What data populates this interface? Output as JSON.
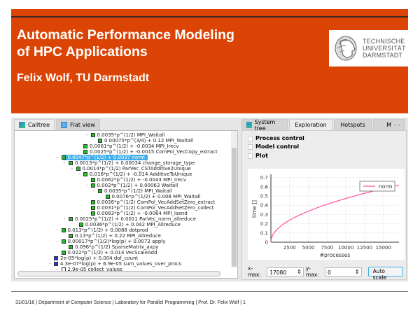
{
  "slide": {
    "title_line1": "Automatic Performance Modeling",
    "title_line2": "of HPC Applications",
    "author": "Felix Wolf, TU Darmstadt",
    "logo_text": [
      "TECHNISCHE",
      "UNIVERSITÄT",
      "DARMSTADT"
    ],
    "accent": "#dc4405"
  },
  "footer": "31/01/16  |  Department of Computer Science | Laboratory for Parallel Programming  |  Prof. Dr. Felix Wolf  |  1",
  "left_tabs": [
    {
      "label": "Calltree"
    },
    {
      "label": "Flat view"
    }
  ],
  "right_tabs": [
    {
      "label": "System tree"
    },
    {
      "label": "Exploration"
    },
    {
      "label": "Hotspots"
    },
    {
      "label": "M"
    }
  ],
  "tree": [
    {
      "text": "0.0035*p^(1/2) MPI_Waitall",
      "level": 5,
      "exp": true,
      "color": "#22c022"
    },
    {
      "text": "0.00075*p^(3/4) + 0.12 MPI_Waitall",
      "level": 6,
      "exp": false,
      "color": "#22c022"
    },
    {
      "text": "0.0061*p^(1/2) + -0.0034 MPI_Irecv",
      "level": 4,
      "exp": false,
      "color": "#22c022"
    },
    {
      "text": "0.0025*p^(1/2) + -0.0015 ComPol_VecCopy_extract",
      "level": 4,
      "exp": false,
      "color": "#22c022"
    },
    {
      "text": "0.0047*p^(1/2) + 0.0037 norm",
      "level": 1,
      "exp": true,
      "color": "#22c022",
      "selected": true
    },
    {
      "text": "0.0013*p^(1/2) + 0.00034 change_storage_type",
      "level": 2,
      "exp": true,
      "color": "#22c022"
    },
    {
      "text": "0.0014*p^(1/2) ParVec_CSTAdditive2Unique",
      "level": 3,
      "exp": true,
      "color": "#22c022"
    },
    {
      "text": "0.016*p^(1/2) + -0.014 AdditiveToUnique",
      "level": 4,
      "exp": true,
      "color": "#22c022"
    },
    {
      "text": "0.0062*p^(1/2) + -0.0043 MPI_Irecv",
      "level": 5,
      "exp": false,
      "color": "#22c022"
    },
    {
      "text": "0.002*p^(1/2) + 0.00063 Waitall",
      "level": 5,
      "exp": true,
      "color": "#22c022"
    },
    {
      "text": "0.0035*p^(1/2) MPI_Waitall",
      "level": 6,
      "exp": true,
      "color": "#22c022"
    },
    {
      "text": "0.0076*p^(1/2) + 0.008 MPI_Waitall",
      "level": 7,
      "exp": false,
      "color": "#22c022"
    },
    {
      "text": "0.0026*p^(1/2) ComPol_VecAddSetZero_extract",
      "level": 5,
      "exp": false,
      "color": "#22c022"
    },
    {
      "text": "0.0031*p^(1/2) ComPol_VecAddSetZero_collect",
      "level": 5,
      "exp": false,
      "color": "#22c022"
    },
    {
      "text": "0.0083*p^(1/2) + -0.0064 MPI_Isend",
      "level": 5,
      "exp": false,
      "color": "#22c022"
    },
    {
      "text": "0.0025*p^(1/2) + 0.0011 ParVec_norm_allreduce",
      "level": 2,
      "exp": true,
      "color": "#22c022"
    },
    {
      "text": "0.0036*p^(1/2) + 0.042 MPI_Allreduce",
      "level": 3.4,
      "exp": false,
      "color": "#22c022"
    },
    {
      "text": "0.013*p^(1/2) + 0.0088 dotprod",
      "level": 1,
      "exp": true,
      "color": "#22c022"
    },
    {
      "text": "0.13*p^(1/2) + 0.22 MPI_Allreduce",
      "level": 2,
      "exp": false,
      "color": "#22c022"
    },
    {
      "text": "0.00017*p^(1/2)*log(p) + 0.0072 apply",
      "level": 1,
      "exp": true,
      "color": "#22c022"
    },
    {
      "text": "0.096*p^(1/2) SparseMatrix_axpy",
      "level": 2,
      "exp": false,
      "color": "#22c022"
    },
    {
      "text": "0.022*p^(1/2) + 0.014 VecScaleAdd",
      "level": 1,
      "exp": false,
      "color": "#22c022"
    },
    {
      "text": "2e-05*log(p) + 0.004 dof_count",
      "level": 0,
      "exp": false,
      "color": "#2040d0"
    },
    {
      "text": "4.3e-07*log(p) + 6.9e-05 sum_values_over_procs",
      "level": 0,
      "exp": true,
      "color": "#2040d0"
    },
    {
      "text": "2.9e-05 collect_values",
      "level": 1,
      "exp": true,
      "color": "#ffffff"
    }
  ],
  "exploration": {
    "checkboxes": [
      "Process control",
      "Model control",
      "Plot"
    ],
    "xmax_label": "x-max:",
    "xmax_value": "17080",
    "ymax_label": "y-max:",
    "ymax_value": "0",
    "auto_scale": "Auto scale"
  },
  "chart_data": {
    "type": "line",
    "xlabel": "#processes",
    "ylabel": "time []",
    "xlim": [
      0,
      17080
    ],
    "ylim": [
      0,
      0.72
    ],
    "xticks": [
      2500,
      5000,
      7500,
      10000,
      12500,
      15000
    ],
    "yticks": [
      0,
      0.1,
      0.2,
      0.3,
      0.4,
      0.5,
      0.6,
      0.7
    ],
    "grid": true,
    "legend": "top-right",
    "series": [
      {
        "name": "norm",
        "model": "0.0047*p^(1/2) + 0.0037",
        "color": "#ff4fa0",
        "x": [
          0,
          250,
          1000,
          2500,
          5000,
          7500,
          10000,
          12500,
          15000,
          17080
        ],
        "y": [
          0.0037,
          0.078,
          0.152,
          0.239,
          0.336,
          0.411,
          0.474,
          0.529,
          0.579,
          0.618
        ]
      }
    ]
  }
}
